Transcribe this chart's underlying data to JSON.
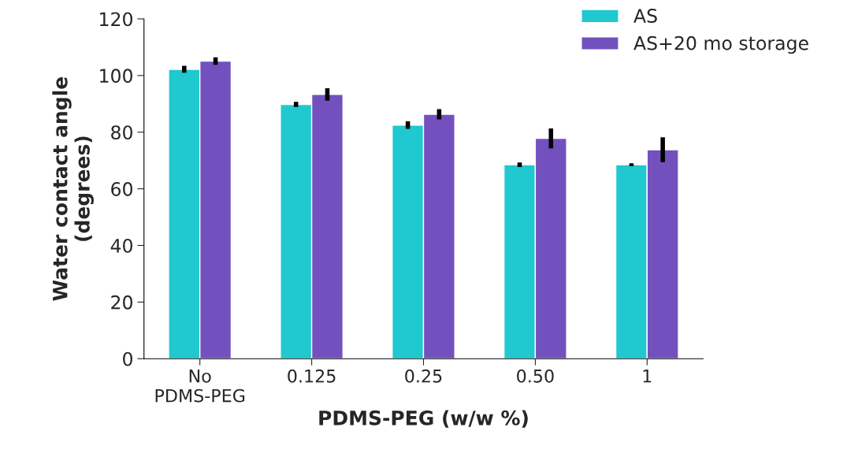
{
  "chart_data": {
    "type": "bar",
    "xlabel": "PDMS-PEG (w/w %)",
    "ylabel": "Water contact angle\n(degrees)",
    "categories": [
      "No\nPDMS-PEG",
      "0.125",
      "0.25",
      "0.50",
      "1"
    ],
    "series": [
      {
        "name": "AS",
        "color": "#20c8cf",
        "values": [
          102.2,
          89.8,
          82.5,
          68.5,
          68.5
        ],
        "errors": [
          1.2,
          0.9,
          1.3,
          0.8,
          0.5
        ]
      },
      {
        "name": "AS+20 mo storage",
        "color": "#7251bf",
        "values": [
          105.1,
          93.3,
          86.3,
          77.8,
          73.8
        ],
        "errors": [
          1.3,
          2.2,
          1.8,
          3.5,
          4.4
        ]
      }
    ],
    "ylim": [
      0,
      120
    ],
    "yticks": [
      0,
      20,
      40,
      60,
      80,
      100,
      120
    ],
    "grid": false,
    "legend": "top right"
  }
}
